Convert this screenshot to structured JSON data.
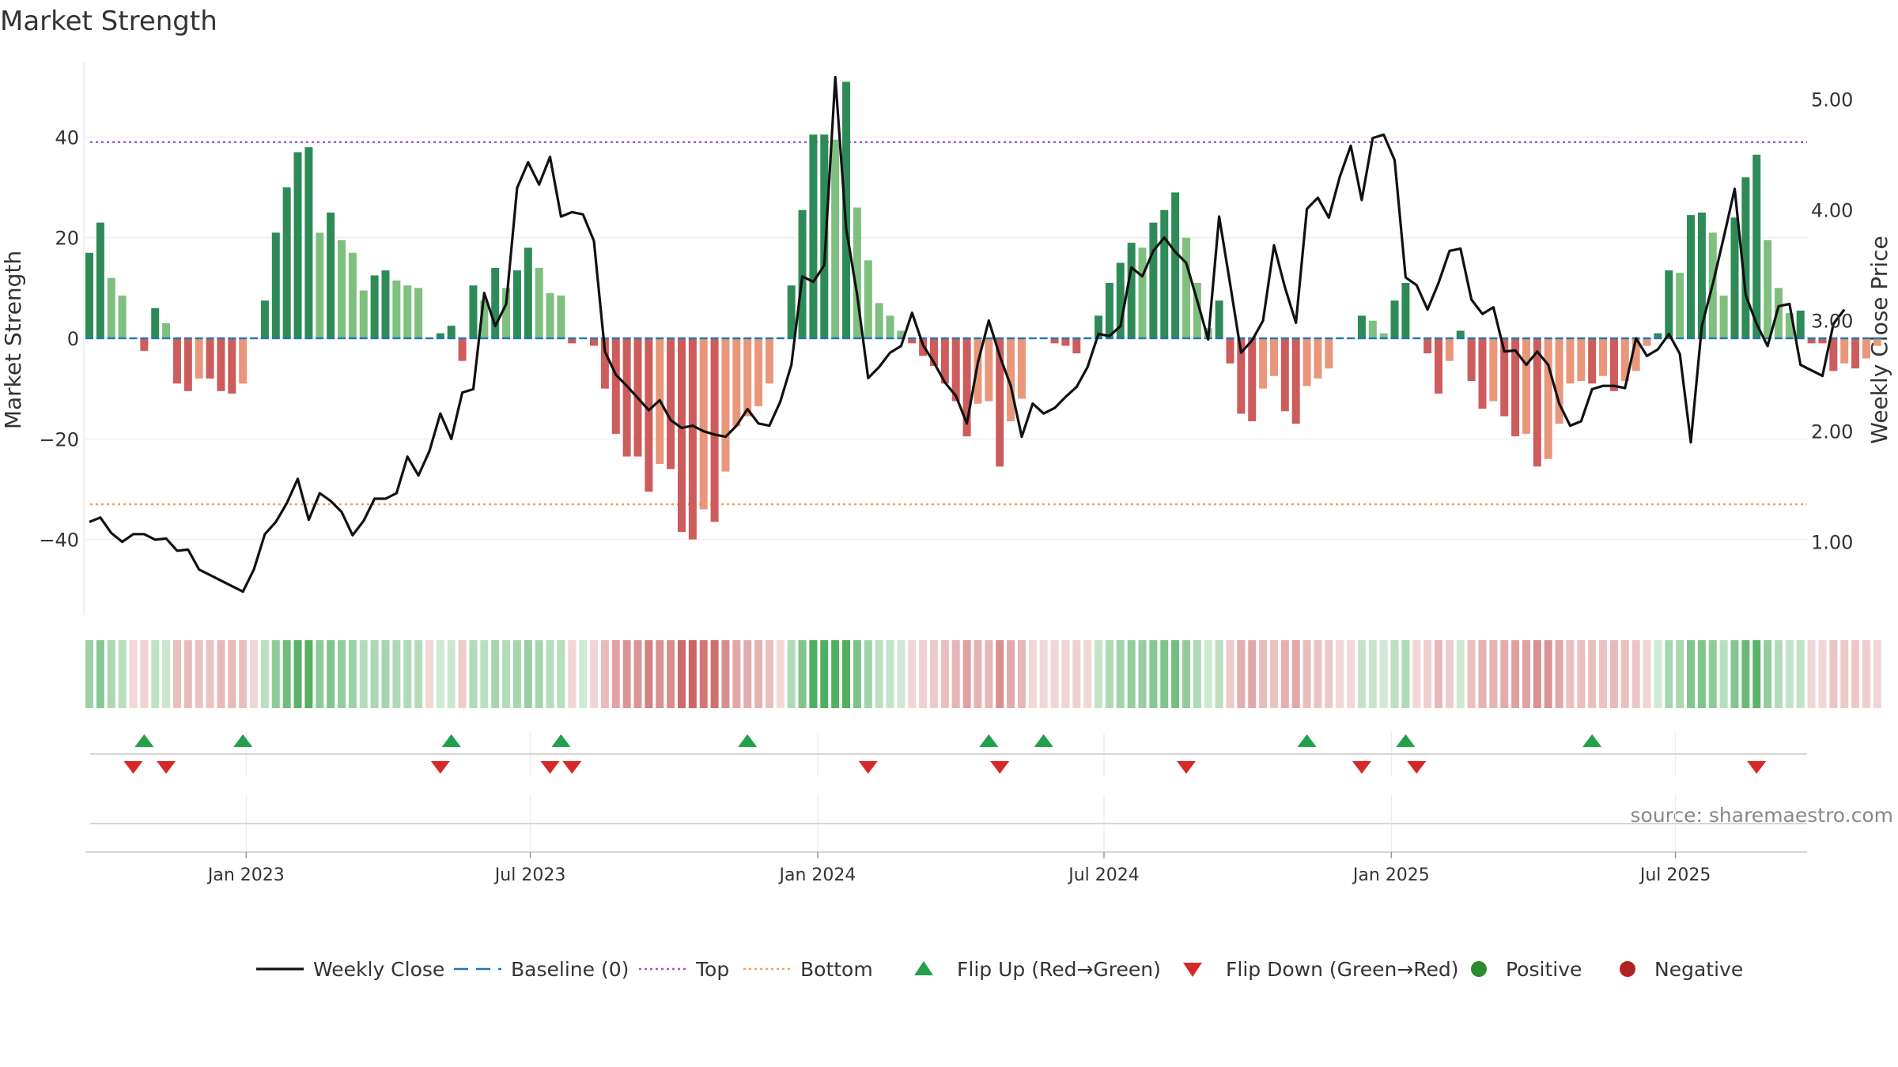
{
  "chart_data": {
    "type": "bar",
    "title": "Market Strength",
    "source": "source: sharemaestro.com",
    "ylabel_left": "Market Strength",
    "ylabel_right": "Weekly Close Price",
    "ylim_left": [
      -55,
      55
    ],
    "ylim_right": [
      0.34,
      5.34
    ],
    "yticks_left": [
      40,
      20,
      0,
      -20,
      -40
    ],
    "ytick_labels_left": [
      "40",
      "20",
      "0",
      "−20",
      "−40"
    ],
    "yticks_right": [
      5.0,
      4.0,
      3.0,
      2.0,
      1.0
    ],
    "ytick_labels_right": [
      "5.00",
      "4.00",
      "3.00",
      "2.00",
      "1.00"
    ],
    "top_threshold": 39,
    "bottom_threshold": -33,
    "baseline": 0,
    "x_ticks": [
      {
        "label": "Jan 2023",
        "week": 14.3
      },
      {
        "label": "Jul 2023",
        "week": 40.2
      },
      {
        "label": "Jan 2024",
        "week": 66.4
      },
      {
        "label": "Jul 2024",
        "week": 92.5
      },
      {
        "label": "Jan 2025",
        "week": 118.7
      },
      {
        "label": "Jul 2025",
        "week": 144.6
      }
    ],
    "series": [
      {
        "name": "Market Strength",
        "values": [
          17,
          23,
          12,
          8.5,
          -0.5,
          -2.5,
          6,
          3,
          -9,
          -10.5,
          -8,
          -8,
          -10.5,
          -11,
          -9,
          -0.5,
          7.5,
          21,
          30,
          37,
          38,
          21,
          25,
          19.5,
          17,
          9.5,
          12.5,
          13.5,
          11.5,
          10.5,
          10,
          -0.5,
          1,
          2.5,
          -4.5,
          10.5,
          7.5,
          14,
          10,
          13.5,
          18,
          14,
          9,
          8.5,
          -1,
          0.5,
          -1.5,
          -10,
          -19,
          -23.5,
          -23.5,
          -30.5,
          -25,
          -26,
          -38.5,
          -40,
          -34,
          -36.5,
          -26.5,
          -17.5,
          -15.5,
          -13.5,
          -9,
          -0.5,
          10.5,
          25.5,
          40.5,
          40.5,
          39.5,
          51,
          26,
          15.5,
          7,
          4.5,
          1.5,
          -1,
          -3.5,
          -5.5,
          -9,
          -12.5,
          -19.5,
          -13,
          -12.5,
          -25.5,
          -16.5,
          -12,
          -0.5,
          -0.5,
          -1,
          -1.5,
          -3,
          -0.5,
          4.5,
          11,
          15,
          19,
          18,
          23,
          25.5,
          29,
          20,
          11,
          2,
          7.5,
          -5,
          -15,
          -16.5,
          -10,
          -7.5,
          -14.5,
          -17,
          -9.5,
          -8,
          -6,
          -0.5,
          -0.5,
          4.5,
          3.5,
          1,
          7.5,
          11,
          -0.5,
          -3,
          -11,
          -4.5,
          1.5,
          -8.5,
          -14,
          -12.5,
          -15.5,
          -19.5,
          -19,
          -25.5,
          -24,
          -17,
          -9,
          -8.5,
          -9,
          -7.5,
          -10.5,
          -8.5,
          -6.5,
          -1.5,
          1,
          13.5,
          13,
          24.5,
          25,
          21,
          8.5,
          24,
          32,
          36.5,
          19.5,
          10,
          5,
          5.5,
          -1,
          -1,
          -6.5,
          -5,
          -6,
          -4,
          -1.5
        ],
        "color_positive_strong": "#2e8b57",
        "color_positive_weak": "#7fbf7f",
        "color_negative_strong": "#cd5c5c",
        "color_negative_weak": "#e9967a"
      },
      {
        "name": "Weekly Close",
        "color": "#111111",
        "values": [
          1.18,
          1.22,
          1.08,
          1.0,
          1.07,
          1.07,
          1.02,
          1.03,
          0.92,
          0.93,
          0.75,
          0.7,
          0.65,
          0.6,
          0.55,
          0.75,
          1.07,
          1.18,
          1.35,
          1.57,
          1.2,
          1.44,
          1.37,
          1.27,
          1.06,
          1.19,
          1.39,
          1.39,
          1.44,
          1.77,
          1.6,
          1.82,
          2.16,
          1.93,
          2.35,
          2.38,
          3.25,
          2.95,
          3.15,
          4.2,
          4.43,
          4.23,
          4.48,
          3.94,
          3.98,
          3.96,
          3.72,
          2.72,
          2.51,
          2.41,
          2.3,
          2.19,
          2.28,
          2.1,
          2.03,
          2.05,
          2.0,
          1.97,
          1.95,
          2.05,
          2.2,
          2.07,
          2.05,
          2.27,
          2.6,
          3.4,
          3.35,
          3.5,
          5.2,
          3.83,
          3.23,
          2.48,
          2.58,
          2.71,
          2.77,
          3.07,
          2.78,
          2.62,
          2.44,
          2.32,
          2.07,
          2.62,
          3.0,
          2.68,
          2.41,
          1.95,
          2.25,
          2.16,
          2.21,
          2.31,
          2.4,
          2.58,
          2.88,
          2.86,
          2.95,
          3.48,
          3.4,
          3.63,
          3.75,
          3.62,
          3.52,
          3.18,
          2.83,
          3.94,
          3.33,
          2.71,
          2.82,
          3.0,
          3.68,
          3.3,
          2.98,
          4.01,
          4.11,
          3.93,
          4.3,
          4.58,
          4.09,
          4.65,
          4.68,
          4.45,
          3.39,
          3.32,
          3.1,
          3.34,
          3.63,
          3.65,
          3.19,
          3.06,
          3.12,
          2.72,
          2.73,
          2.6,
          2.72,
          2.6,
          2.25,
          2.05,
          2.09,
          2.38,
          2.41,
          2.41,
          2.39,
          2.84,
          2.68,
          2.74,
          2.88,
          2.7,
          1.9,
          2.95,
          3.33,
          3.75,
          4.19,
          3.23,
          2.97,
          2.77,
          3.13,
          3.15,
          2.6,
          2.55,
          2.5,
          2.97,
          3.1
        ]
      }
    ],
    "heat_strip": {
      "description": "Intensity strip mirroring the strength series",
      "positive_color": "#4fae5f",
      "negative_color": "#cc6666"
    },
    "flip_up_weeks": [
      5,
      14,
      33,
      43,
      60,
      82,
      87,
      111,
      120,
      137
    ],
    "flip_down_weeks": [
      4,
      7,
      32,
      42,
      44,
      71,
      83,
      100,
      116,
      121,
      152
    ],
    "legend": [
      {
        "name": "Weekly Close",
        "kind": "line",
        "color": "#111111"
      },
      {
        "name": "Baseline (0)",
        "kind": "dash",
        "color": "#1f77b4"
      },
      {
        "name": "Top",
        "kind": "dot",
        "color": "#9b59d0"
      },
      {
        "name": "Bottom",
        "kind": "dot",
        "color": "#f0a060"
      },
      {
        "name": "Flip Up (Red→Green)",
        "kind": "tri-up",
        "color": "#22a04b"
      },
      {
        "name": "Flip Down (Green→Red)",
        "kind": "tri-down",
        "color": "#d62828"
      },
      {
        "name": "Positive",
        "kind": "circle",
        "color": "#2a8c2a"
      },
      {
        "name": "Negative",
        "kind": "circle",
        "color": "#b22222"
      }
    ],
    "legend_position": "bottom-center"
  }
}
